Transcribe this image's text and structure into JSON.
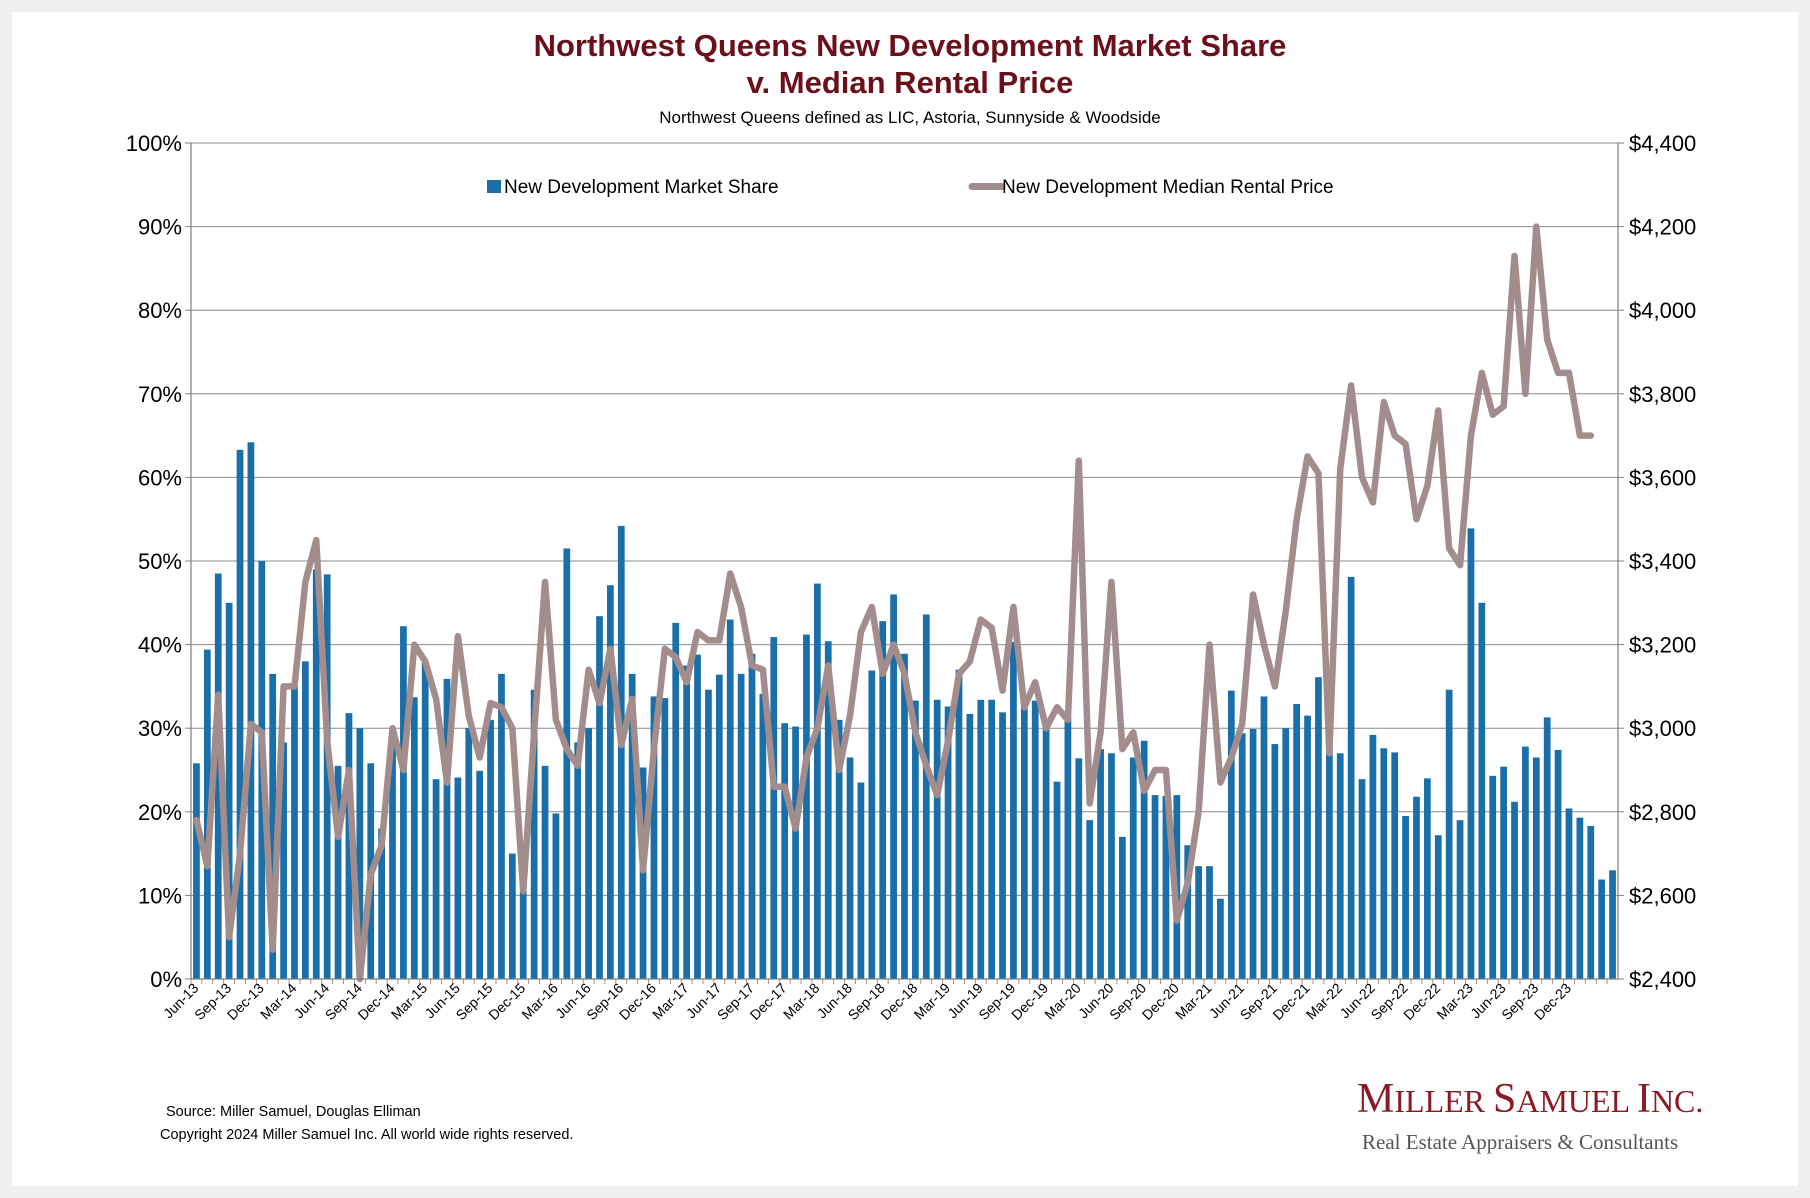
{
  "chart_data": {
    "type": "bar",
    "title": "Northwest Queens New Development Market Share",
    "title_line2": "v. Median Rental Price",
    "subtitle": "Northwest Queens defined as LIC, Astoria, Sunnyside & Woodside",
    "y_left": {
      "ylim": [
        0,
        100
      ],
      "unit": "%",
      "ticks": [
        "0%",
        "10%",
        "20%",
        "30%",
        "40%",
        "50%",
        "60%",
        "70%",
        "80%",
        "90%",
        "100%"
      ]
    },
    "y_right": {
      "ylim": [
        2400,
        4400
      ],
      "unit": "$",
      "ticks": [
        "$2,400",
        "$2,600",
        "$2,800",
        "$3,000",
        "$3,200",
        "$3,400",
        "$3,600",
        "$3,800",
        "$4,000",
        "$4,200",
        "$4,400"
      ]
    },
    "x_tick_labels": [
      "Jun-13",
      "Sep-13",
      "Dec-13",
      "Mar-14",
      "Jun-14",
      "Sep-14",
      "Dec-14",
      "Mar-15",
      "Jun-15",
      "Sep-15",
      "Dec-15",
      "Mar-16",
      "Jun-16",
      "Sep-16",
      "Dec-16",
      "Mar-17",
      "Jun-17",
      "Sep-17",
      "Dec-17",
      "Mar-18",
      "Jun-18",
      "Sep-18",
      "Dec-18",
      "Mar-19",
      "Jun-19",
      "Sep-19",
      "Dec-19",
      "Mar-20",
      "Jun-20",
      "Sep-20",
      "Dec-20",
      "Mar-21",
      "Jun-21",
      "Sep-21",
      "Dec-21",
      "Mar-22",
      "Jun-22",
      "Sep-22",
      "Dec-22",
      "Mar-23",
      "Jun-23",
      "Sep-23",
      "Dec-23"
    ],
    "x_start": "Jun-13",
    "x_end": "Feb-24",
    "grid": true,
    "legend_position": "top",
    "series": [
      {
        "name": "New Development Market Share",
        "type": "bar",
        "axis": "left",
        "color": "#1a6fa8",
        "values": [
          25.8,
          39.4,
          48.5,
          45.0,
          63.3,
          64.2,
          50.0,
          36.5,
          28.3,
          35.0,
          38.0,
          49.0,
          48.4,
          25.5,
          31.8,
          30.0,
          25.8,
          18.0,
          29.0,
          42.2,
          33.7,
          38.0,
          23.9,
          35.9,
          24.1,
          30.0,
          24.9,
          31.0,
          36.5,
          15.0,
          14.8,
          34.6,
          25.5,
          19.8,
          51.5,
          28.3,
          30.0,
          43.4,
          47.1,
          54.2,
          36.5,
          25.3,
          33.8,
          33.6,
          42.6,
          37.5,
          38.8,
          34.6,
          36.4,
          43.0,
          36.5,
          38.9,
          34.1,
          40.9,
          30.6,
          30.2,
          41.2,
          47.3,
          40.4,
          31.0,
          26.5,
          23.5,
          36.9,
          42.8,
          46.0,
          38.9,
          33.3,
          43.6,
          33.4,
          32.6,
          37.0,
          31.7,
          33.4,
          33.4,
          31.9,
          40.3,
          33.3,
          33.3,
          30.0,
          23.6,
          31.2,
          26.4,
          19.0,
          27.5,
          27.0,
          17.0,
          26.5,
          28.5,
          22.0,
          21.9,
          22.0,
          16.0,
          13.5,
          13.5,
          9.6,
          34.5,
          29.4,
          29.9,
          33.8,
          28.1,
          30.0,
          32.9,
          31.5,
          36.1,
          29.6,
          27.0,
          48.1,
          23.9,
          29.2,
          27.6,
          27.1,
          19.5,
          21.8,
          24.0,
          17.2,
          34.6,
          19.0,
          53.9,
          45.0,
          24.3,
          25.4,
          21.2,
          27.8,
          26.5,
          31.3,
          27.4,
          20.4,
          19.3,
          18.3,
          11.9,
          13.0
        ]
      },
      {
        "name": "New Development Median Rental Price",
        "type": "line",
        "axis": "right",
        "color": "#a38c8c",
        "values": [
          2780,
          2670,
          3080,
          2500,
          2700,
          3010,
          2990,
          2470,
          3100,
          3100,
          3350,
          3450,
          2970,
          2740,
          2900,
          2400,
          2650,
          2720,
          3000,
          2900,
          3200,
          3160,
          3070,
          2870,
          3220,
          3030,
          2930,
          3060,
          3050,
          3000,
          2610,
          2990,
          3350,
          3020,
          2950,
          2910,
          3140,
          3060,
          3190,
          2960,
          3070,
          2660,
          2950,
          3190,
          3170,
          3110,
          3230,
          3210,
          3210,
          3370,
          3290,
          3150,
          3140,
          2860,
          2860,
          2760,
          2930,
          3000,
          3150,
          2900,
          3030,
          3230,
          3290,
          3130,
          3200,
          3130,
          2990,
          2910,
          2840,
          2970,
          3130,
          3160,
          3260,
          3240,
          3090,
          3290,
          3050,
          3110,
          3000,
          3050,
          3020,
          3640,
          2820,
          2990,
          3350,
          2950,
          2990,
          2850,
          2900,
          2900,
          2540,
          2630,
          2800,
          3200,
          2870,
          2930,
          3010,
          3320,
          3200,
          3100,
          3280,
          3500,
          3650,
          3610,
          2940,
          3620,
          3820,
          3600,
          3540,
          3780,
          3700,
          3680,
          3500,
          3580,
          3760,
          3430,
          3390,
          3700,
          3850,
          3750,
          3770,
          4130,
          3800,
          4200,
          3930,
          3850,
          3850,
          3700,
          3700
        ]
      }
    ]
  },
  "footer": {
    "source": "Source: Miller Samuel, Douglas Elliman",
    "copyright": "Copyright 2024 Miller Samuel Inc.  All world wide rights reserved."
  },
  "brand": {
    "name": "Miller Samuel Inc.",
    "tagline": "Real Estate Appraisers & Consultants"
  }
}
